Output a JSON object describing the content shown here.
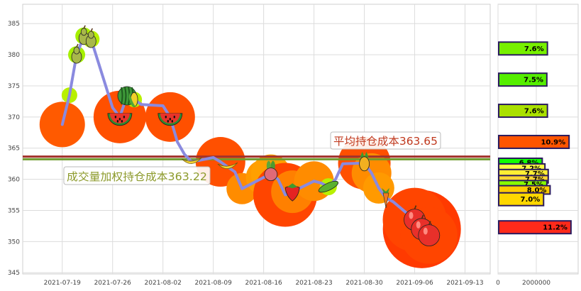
{
  "chart_data": [
    {
      "type": "line",
      "panel": "price",
      "x": [
        "2021-07-19",
        "2021-07-20",
        "2021-07-21",
        "2021-07-22",
        "2021-07-23",
        "2021-07-26",
        "2021-07-27",
        "2021-07-28",
        "2021-07-29",
        "2021-07-30",
        "2021-08-02",
        "2021-08-03",
        "2021-08-04",
        "2021-08-05",
        "2021-08-06",
        "2021-08-09",
        "2021-08-10",
        "2021-08-11",
        "2021-08-12",
        "2021-08-13",
        "2021-08-16",
        "2021-08-17",
        "2021-08-18",
        "2021-08-19",
        "2021-08-20",
        "2021-08-23",
        "2021-08-24",
        "2021-08-25",
        "2021-08-26",
        "2021-08-27",
        "2021-08-30",
        "2021-08-31",
        "2021-09-01",
        "2021-09-02",
        "2021-09-03",
        "2021-09-06",
        "2021-09-07",
        "2021-09-08",
        "2021-09-09"
      ],
      "series": [
        {
          "color": "#8A8ADF",
          "values": [
            368.8,
            373.5,
            380.0,
            383.0,
            382.5,
            371.5,
            370.0,
            373.4,
            372.8,
            372.0,
            371.8,
            370.0,
            366.0,
            364.0,
            362.8,
            363.5,
            362.8,
            362.0,
            361.2,
            358.5,
            360.3,
            360.8,
            360.0,
            357.5,
            358.0,
            359.7,
            359.4,
            358.8,
            360.0,
            362.5,
            362.6,
            361.0,
            358.6,
            357.0,
            356.4,
            353.5,
            352.0,
            351.0,
            350.6
          ]
        }
      ],
      "xlim": [
        "2021-07-13T12:00",
        "2021-09-16T12:00"
      ],
      "ylim": [
        344.8,
        388.1
      ],
      "xticks": [
        "2021-07-19",
        "2021-07-26",
        "2021-08-02",
        "2021-08-09",
        "2021-08-16",
        "2021-08-23",
        "2021-08-30",
        "2021-09-06",
        "2021-09-13"
      ],
      "yticks": [
        345,
        350,
        355,
        360,
        365,
        370,
        375,
        380,
        385
      ],
      "grid": true,
      "markers": [
        {
          "index": 2,
          "icon": "pear-icon"
        },
        {
          "index": 3,
          "icon": "pear-icon"
        },
        {
          "index": 4,
          "icon": "pear-icon"
        },
        {
          "index": 6,
          "icon": "watermelon-icon"
        },
        {
          "index": 7,
          "icon": "melon-icon"
        },
        {
          "index": 8,
          "icon": "corn-icon"
        },
        {
          "index": 11,
          "icon": "watermelon-icon"
        },
        {
          "index": 14,
          "icon": "banana-icon"
        },
        {
          "index": 17,
          "icon": "banana-icon"
        },
        {
          "index": 21,
          "icon": "radish-icon"
        },
        {
          "index": 24,
          "icon": "strawberry-icon"
        },
        {
          "index": 27,
          "icon": "peapod-icon"
        },
        {
          "index": 30,
          "icon": "pineapple-icon"
        },
        {
          "index": 33,
          "icon": "carrot-icon"
        },
        {
          "index": 35,
          "icon": "apple-icon"
        },
        {
          "index": 36,
          "icon": "apple-icon"
        },
        {
          "index": 37,
          "icon": "apple-icon"
        }
      ],
      "reference_lines": [
        {
          "value": 363.65,
          "color": "#A3322B",
          "annotation": "平均持仓成本363.65",
          "text_color": "#C0391E"
        },
        {
          "value": 363.22,
          "color": "#6F9A2E",
          "annotation": "成交量加权持仓成本363.22",
          "text_color": "#8C9A2B"
        }
      ]
    },
    {
      "type": "bar",
      "orientation": "horizontal",
      "panel": "volume-profile",
      "xlim": [
        0,
        4185000
      ],
      "xticks": [
        0,
        2000000
      ],
      "bars": [
        {
          "price": 381.0,
          "volume": 2580000,
          "label": "7.6%",
          "color": "#77F000"
        },
        {
          "price": 376.0,
          "volume": 2550000,
          "label": "7.5%",
          "color": "#55EE00"
        },
        {
          "price": 371.0,
          "volume": 2580000,
          "label": "7.6%",
          "color": "#AAE000"
        },
        {
          "price": 366.0,
          "volume": 3710000,
          "label": "10.9%",
          "color": "#FF5500"
        },
        {
          "price": 362.7,
          "volume": 2310000,
          "label": "6.8%",
          "color": "#11FF00"
        },
        {
          "price": 361.8,
          "volume": 2450000,
          "label": "7.2%",
          "color": "#FFFF44"
        },
        {
          "price": 360.9,
          "volume": 2620000,
          "label": "7.7%",
          "color": "#FFEE33"
        },
        {
          "price": 360.0,
          "volume": 2620000,
          "label": "7.7%",
          "color": "#FFD633"
        },
        {
          "price": 359.2,
          "volume": 2550000,
          "label": "7.5%",
          "color": "#88FF00"
        },
        {
          "price": 358.3,
          "volume": 2720000,
          "label": "8.0%",
          "color": "#FFCC00"
        },
        {
          "price": 356.8,
          "volume": 2380000,
          "label": "7.0%",
          "color": "#FFD700"
        },
        {
          "price": 352.3,
          "volume": 3810000,
          "label": "11.2%",
          "color": "#FF2A1A"
        }
      ]
    }
  ]
}
